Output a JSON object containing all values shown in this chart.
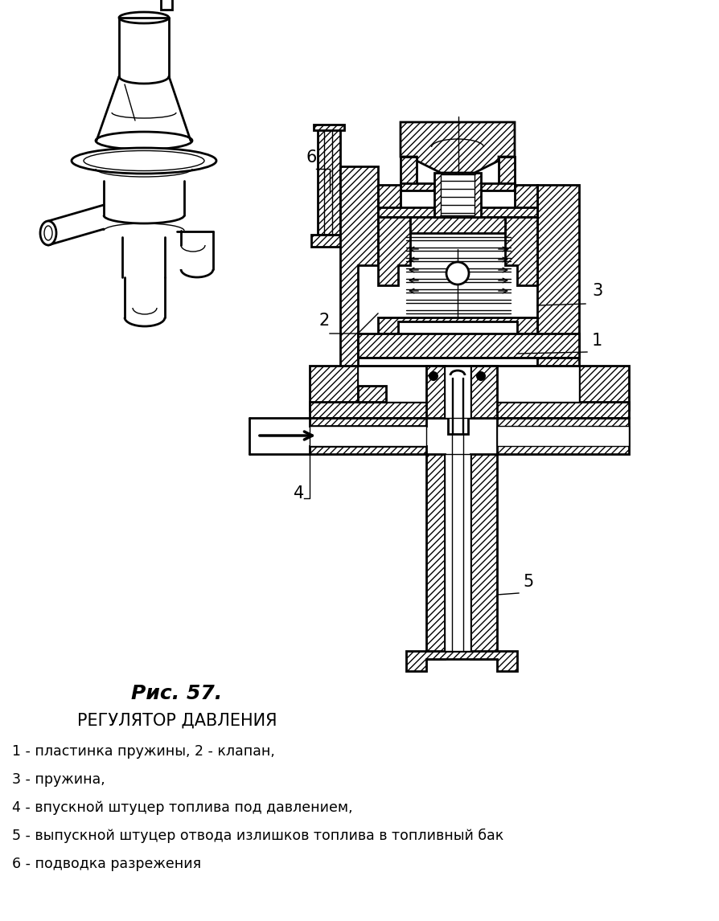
{
  "bg_color": "#ffffff",
  "line_color": "#000000",
  "title_bold": "Рис. 57.",
  "title_main": "РЕГУЛЯТОР ДАВЛЕНИЯ",
  "labels": [
    "1 - пластинка пружины, 2 - клапан,",
    "3 - пружина,",
    "4 - впускной штуцер топлива под давлением,",
    "5 - выпускной штуцер отвода излишков топлива в топливный бак",
    "6 - подводка разрежения"
  ],
  "figsize": [
    8.94,
    11.46
  ],
  "dpi": 100
}
